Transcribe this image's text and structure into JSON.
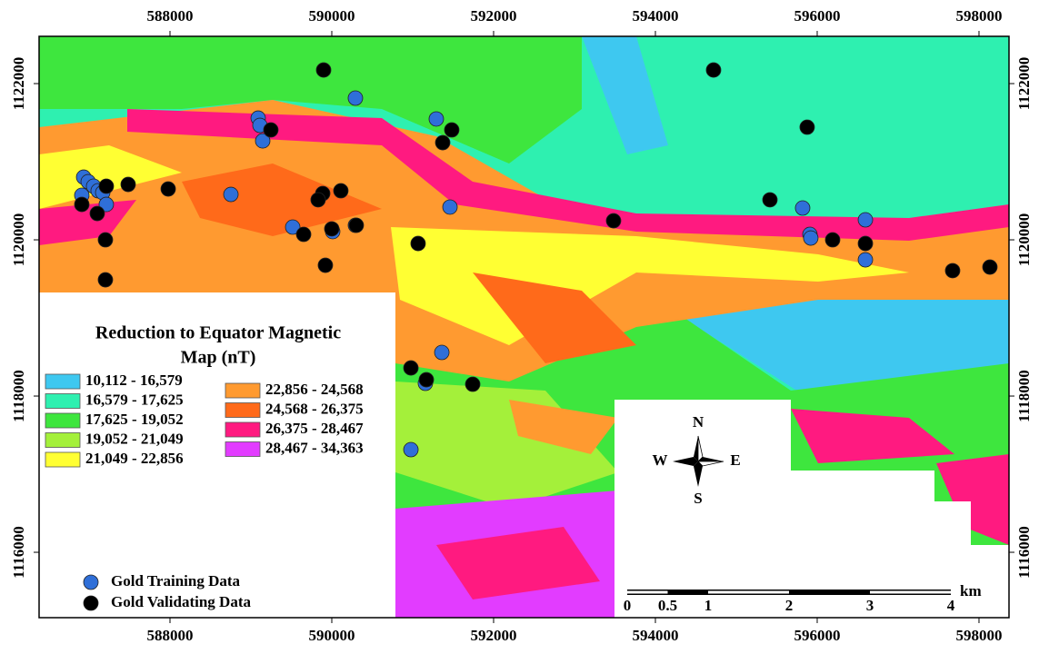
{
  "map": {
    "xlim": [
      586382,
      598371
    ],
    "ylim": [
      1115163,
      1122605
    ],
    "xticks": [
      588000,
      590000,
      592000,
      594000,
      596000,
      598000
    ],
    "yticks": [
      1116000,
      1118000,
      1120000,
      1122000
    ]
  },
  "legend": {
    "title_lines": [
      "Reduction to Equator Magnetic",
      "Map (nT)"
    ],
    "classes": [
      {
        "label": "10,112 - 16,579",
        "color": "#3ec8f0"
      },
      {
        "label": "16,579 - 17,625",
        "color": "#2ef0b0"
      },
      {
        "label": "17,625 - 19,052",
        "color": "#3ee63e"
      },
      {
        "label": "19,052 - 21,049",
        "color": "#a4f03a"
      },
      {
        "label": "21,049 - 22,856",
        "color": "#ffff33"
      },
      {
        "label": "22,856 - 24,568",
        "color": "#ff9a30"
      },
      {
        "label": "24,568 - 26,375",
        "color": "#ff6a1a"
      },
      {
        "label": "26,375 - 28,467",
        "color": "#ff1a80"
      },
      {
        "label": "28,467 - 34,363",
        "color": "#e23cff"
      }
    ]
  },
  "points": [
    {
      "name": "Gold Training Data",
      "color": "#2f6fd8",
      "x": [
        586933,
        586989,
        587056,
        587112,
        587169,
        586910,
        587213,
        588753,
        589090,
        589112,
        589146,
        589517,
        590011,
        590292,
        590292,
        591292,
        591461,
        591360,
        591157,
        590978,
        595820,
        595910,
        595921,
        596596,
        596596
      ],
      "y": [
        1120802,
        1120744,
        1120686,
        1120628,
        1120605,
        1120570,
        1120453,
        1120581,
        1121558,
        1121465,
        1121267,
        1120163,
        1120105,
        1121814,
        1120186,
        1121547,
        1120419,
        1118558,
        1118163,
        1117314,
        1120407,
        1120070,
        1120023,
        1120256,
        1119744
      ]
    },
    {
      "name": "Gold Validating Data",
      "color": "#000000",
      "x": [
        586910,
        587101,
        587213,
        587202,
        587202,
        587483,
        587978,
        589247,
        589899,
        589888,
        589831,
        590112,
        590000,
        589652,
        589921,
        590303,
        591067,
        590978,
        591169,
        591742,
        591371,
        591483,
        593483,
        594719,
        595416,
        595876,
        596191,
        596596,
        597674,
        598135
      ],
      "y": [
        1120453,
        1120337,
        1120686,
        1120000,
        1119488,
        1120709,
        1120651,
        1121407,
        1122174,
        1120593,
        1120512,
        1120628,
        1120140,
        1120070,
        1119674,
        1120186,
        1119953,
        1118360,
        1118209,
        1118151,
        1121244,
        1121407,
        1120244,
        1122174,
        1120512,
        1121442,
        1120000,
        1119953,
        1119605,
        1119651
      ]
    }
  ],
  "compass": {
    "n": "N",
    "e": "E",
    "s": "S",
    "w": "W"
  },
  "scale_bar": {
    "ticks": [
      0,
      0.5,
      1,
      2,
      3,
      4
    ],
    "unit": "km"
  }
}
